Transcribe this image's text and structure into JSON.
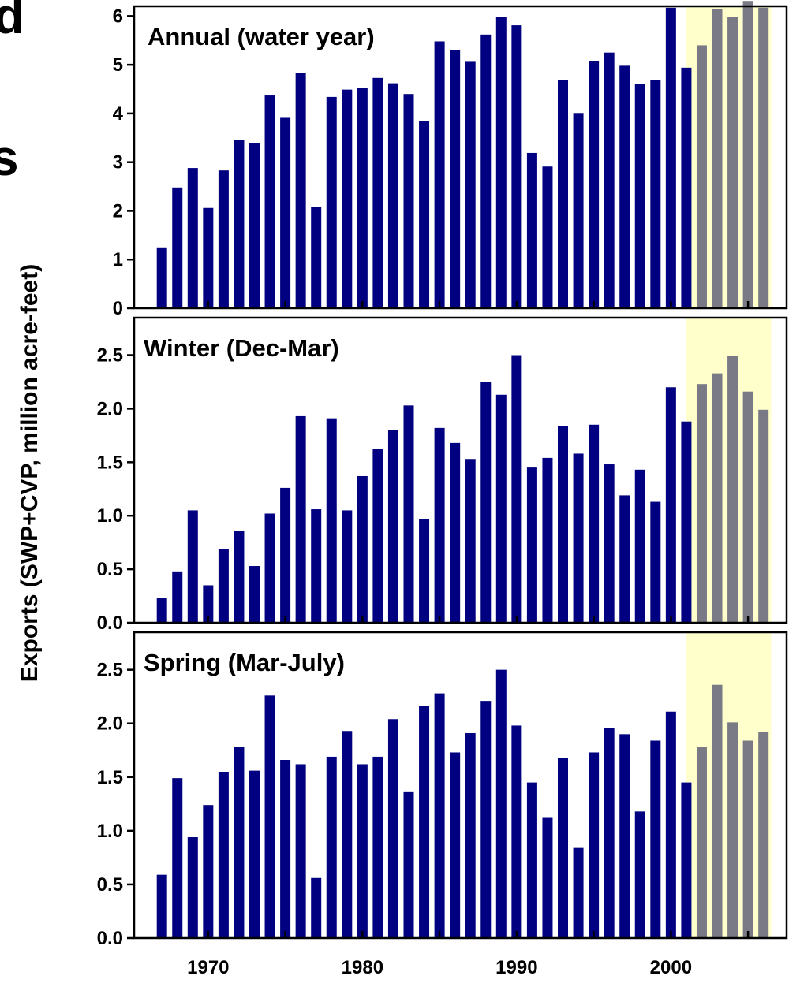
{
  "page_fragments": [
    "d",
    "s"
  ],
  "chart_data": {
    "type": "bar",
    "ylabel": "Exports (SWP+CVP, million acre-feet)",
    "xlabel": "",
    "xlim": [
      1965.2,
      2007.5
    ],
    "x_ticks": [
      1970,
      1980,
      1990,
      2000
    ],
    "x_minor_ticks": [
      1975,
      1985,
      1995,
      2005
    ],
    "highlight": {
      "x_range": [
        2001,
        2006.5
      ],
      "color": "#ffffcc"
    },
    "years": [
      1967,
      1968,
      1969,
      1970,
      1971,
      1972,
      1973,
      1974,
      1975,
      1976,
      1977,
      1978,
      1979,
      1980,
      1981,
      1982,
      1983,
      1984,
      1985,
      1986,
      1987,
      1988,
      1989,
      1990,
      1991,
      1992,
      1993,
      1994,
      1995,
      1996,
      1997,
      1998,
      1999,
      2000,
      2001,
      2002,
      2003,
      2004,
      2005,
      2006
    ],
    "bar_colors": {
      "historical": "#000080",
      "recent": "#7a7a86"
    },
    "recent_from_year": 2002,
    "panels": [
      {
        "name": "annual",
        "title": "Annual (water year)",
        "ylim": [
          0,
          6.2
        ],
        "y_ticks": [
          0,
          1,
          2,
          3,
          4,
          5,
          6
        ],
        "y_tick_labels": [
          "0",
          "1",
          "2",
          "3",
          "4",
          "5",
          "6"
        ],
        "values": [
          1.25,
          2.48,
          2.88,
          2.06,
          2.83,
          3.45,
          3.39,
          4.37,
          3.91,
          4.84,
          2.08,
          4.34,
          4.49,
          4.52,
          4.73,
          4.62,
          4.4,
          3.84,
          5.48,
          5.3,
          5.06,
          5.62,
          5.98,
          5.81,
          3.19,
          2.91,
          4.68,
          4.01,
          5.08,
          5.25,
          4.98,
          4.61,
          4.69,
          6.17,
          4.94,
          5.4,
          6.15,
          5.98,
          6.31,
          6.17
        ]
      },
      {
        "name": "winter",
        "title": "Winter (Dec-Mar)",
        "ylim": [
          0,
          2.85
        ],
        "y_ticks": [
          0,
          0.5,
          1,
          1.5,
          2,
          2.5
        ],
        "y_tick_labels": [
          "0.0",
          "0.5",
          "1.0",
          "1.5",
          "2.0",
          "2.5"
        ],
        "values": [
          0.23,
          0.48,
          1.05,
          0.35,
          0.69,
          0.86,
          0.53,
          1.02,
          1.26,
          1.93,
          1.06,
          1.91,
          1.05,
          1.37,
          1.62,
          1.8,
          2.03,
          0.97,
          1.82,
          1.68,
          1.53,
          2.25,
          2.13,
          2.5,
          1.45,
          1.54,
          1.84,
          1.58,
          1.85,
          1.48,
          1.19,
          1.43,
          1.13,
          2.2,
          1.88,
          2.23,
          2.33,
          2.49,
          2.16,
          1.99
        ]
      },
      {
        "name": "spring",
        "title": "Spring (Mar-July)",
        "ylim": [
          0,
          2.85
        ],
        "y_ticks": [
          0,
          0.5,
          1,
          1.5,
          2,
          2.5
        ],
        "y_tick_labels": [
          "0.0",
          "0.5",
          "1.0",
          "1.5",
          "2.0",
          "2.5"
        ],
        "values": [
          0.59,
          1.49,
          0.94,
          1.24,
          1.55,
          1.78,
          1.56,
          2.26,
          1.66,
          1.62,
          0.56,
          1.69,
          1.93,
          1.62,
          1.69,
          2.04,
          1.36,
          2.16,
          2.28,
          1.73,
          1.91,
          2.21,
          2.5,
          1.98,
          1.45,
          1.12,
          1.68,
          0.84,
          1.73,
          1.96,
          1.9,
          1.18,
          1.84,
          2.11,
          1.45,
          1.78,
          2.36,
          2.01,
          1.84,
          1.92
        ]
      }
    ]
  }
}
